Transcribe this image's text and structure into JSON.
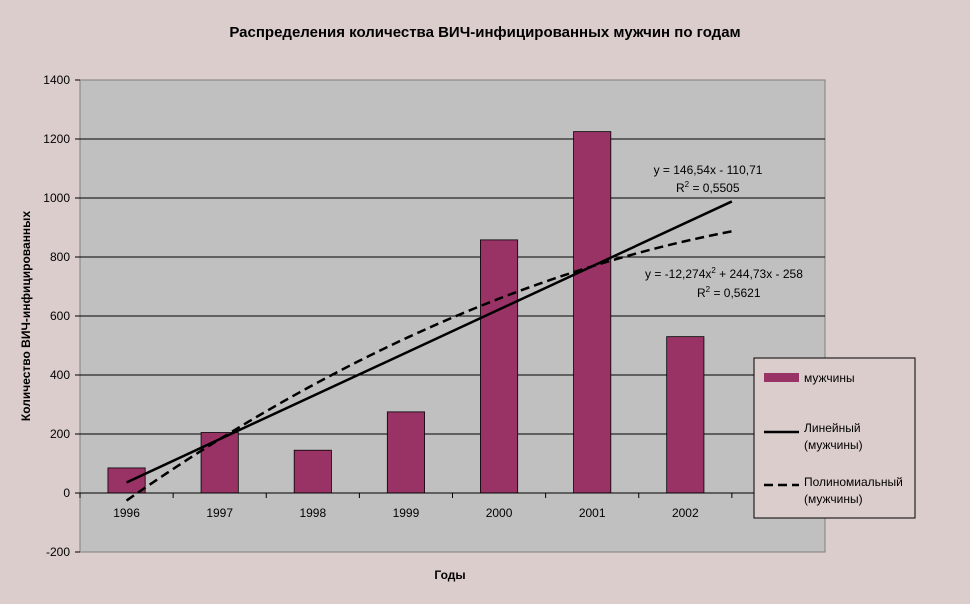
{
  "chart_data": {
    "type": "bar",
    "title": "Распределения количества ВИЧ-инфицированных мужчин по годам",
    "xlabel": "Годы",
    "ylabel": "Количество ВИЧ-инфицированных",
    "categories": [
      "1996",
      "1997",
      "1998",
      "1999",
      "2000",
      "2001",
      "2002"
    ],
    "series": [
      {
        "name": "мужчины",
        "values": [
          85,
          205,
          145,
          275,
          858,
          1225,
          530
        ]
      }
    ],
    "ylim": [
      -200,
      1400
    ],
    "yticks": [
      "-200",
      "0",
      "200",
      "400",
      "600",
      "800",
      "1000",
      "1200",
      "1400"
    ],
    "grid": true,
    "legend_position": "right",
    "trendlines": [
      {
        "type": "linear",
        "name": "Линейный (мужчины)",
        "equation": "y = 146,54x - 110,71",
        "r2_prefix": "R",
        "r2_value": " = 0,5505",
        "coefficients": {
          "a": 146.54,
          "b": -110.71
        }
      },
      {
        "type": "polynomial",
        "name": "Полиномиальный (мужчины)",
        "equation_part1": "y = -12,274x",
        "equation_part2": " + 244,73x - 258",
        "r2_prefix": "R",
        "r2_value": " = 0,5621",
        "coefficients": {
          "a": -12.274,
          "b": 244.73,
          "c": -258
        }
      }
    ],
    "legend": [
      {
        "label_lines": [
          "мужчины"
        ]
      },
      {
        "label_lines": [
          "Линейный",
          "(мужчины)"
        ]
      },
      {
        "label_lines": [
          "Полиномиальный",
          "(мужчины)"
        ]
      }
    ],
    "colors": {
      "bar": "#993366",
      "plot_area": "#c0c0c0",
      "background": "#dccdcd",
      "trend": "#000000"
    }
  }
}
